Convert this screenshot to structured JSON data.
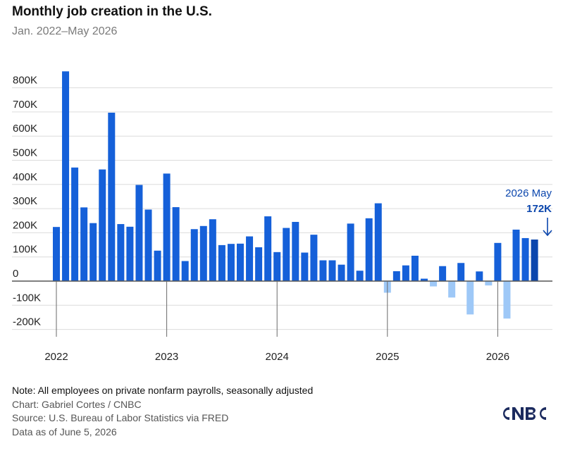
{
  "header": {
    "title": "Monthly job creation in the U.S.",
    "subtitle": "Jan. 2022–May 2026"
  },
  "footer": {
    "note": "Note: All employees on private nonfarm payrolls, seasonally adjusted",
    "chart_credit": "Chart: Gabriel Cortes / CNBC",
    "source": "Source: U.S. Bureau of Labor Statistics via FRED",
    "data_as_of": "Data as of June 5, 2026"
  },
  "logo": {
    "name": "cnbc-logo",
    "text": "CNBC"
  },
  "colors": {
    "positive": "#1560d9",
    "negative": "#9ec8f7",
    "latest": "#0b46ad",
    "annotation": "#0b46ad",
    "grid": "#dcdcdc",
    "baseline": "#555555",
    "axis_text": "#222222"
  },
  "chart_data": {
    "type": "bar",
    "x_start": "2022-01",
    "x_end": "2026-05",
    "x_tick_labels": [
      "2022",
      "2023",
      "2024",
      "2025",
      "2026"
    ],
    "y_tick_values": [
      800000,
      700000,
      600000,
      500000,
      400000,
      300000,
      200000,
      100000,
      0,
      -100000,
      -200000
    ],
    "y_tick_labels": [
      "800K",
      "700K",
      "600K",
      "500K",
      "400K",
      "300K",
      "200K",
      "100K",
      "0",
      "-100K",
      "-200K"
    ],
    "ylim": [
      -230000,
      880000
    ],
    "grid": true,
    "series": [
      {
        "values": [
          224000,
          868000,
          470000,
          305000,
          240000,
          462000,
          697000,
          236000,
          225000,
          398000,
          296000,
          126000,
          445000,
          306000,
          83000,
          215000,
          228000,
          256000,
          149000,
          154000,
          155000,
          185000,
          140000,
          268000,
          120000,
          220000,
          245000,
          118000,
          192000,
          86000,
          86000,
          68000,
          238000,
          43000,
          260000,
          322000,
          -48000,
          41000,
          65000,
          105000,
          10000,
          -22000,
          62000,
          -68000,
          75000,
          -138000,
          40000,
          -18000,
          158000,
          -155000,
          213000,
          178000,
          172000
        ]
      }
    ],
    "annotation": {
      "label": "2026 May",
      "value_label": "172K"
    }
  }
}
